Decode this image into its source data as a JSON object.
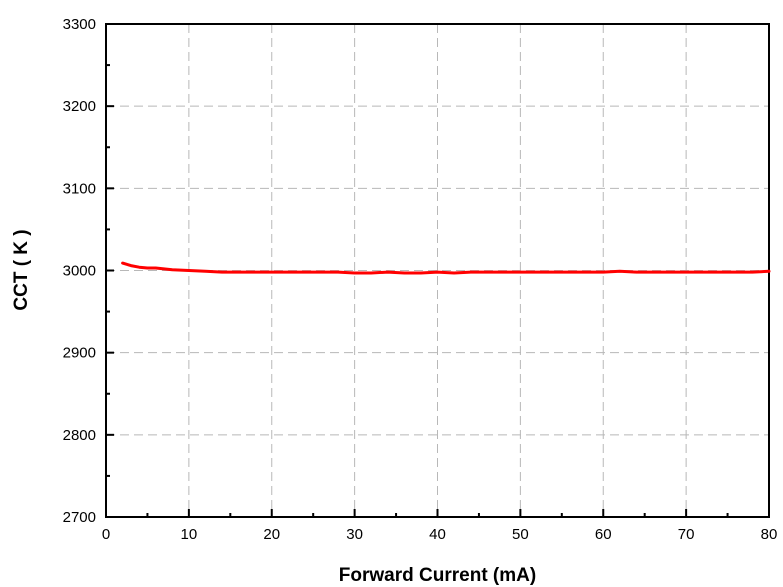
{
  "chart_data": {
    "type": "line",
    "title": "",
    "xlabel": "Forward Current (mA)",
    "ylabel": "CCT ( K )",
    "xlim": [
      0,
      80
    ],
    "ylim": [
      2700,
      3300
    ],
    "xticks": [
      0,
      10,
      20,
      30,
      40,
      50,
      60,
      70,
      80
    ],
    "yticks": [
      2700,
      2800,
      2900,
      3000,
      3100,
      3200,
      3300
    ],
    "x_tick_labels": [
      "0",
      "10",
      "20",
      "30",
      "40",
      "50",
      "60",
      "70",
      "80"
    ],
    "y_tick_labels": [
      "2700",
      "2800",
      "2900",
      "3000",
      "3100",
      "3200",
      "3300"
    ],
    "grid": true,
    "legend": "none",
    "series": [
      {
        "color": "#ff0000",
        "x": [
          2,
          3,
          4,
          5,
          6,
          7,
          8,
          10,
          12,
          14,
          16,
          18,
          20,
          22,
          24,
          26,
          28,
          30,
          32,
          34,
          36,
          38,
          40,
          42,
          44,
          46,
          48,
          50,
          52,
          54,
          56,
          58,
          60,
          62,
          64,
          66,
          68,
          70,
          72,
          74,
          76,
          78,
          80
        ],
        "y": [
          3009,
          3006,
          3004,
          3003,
          3003,
          3002,
          3001,
          3000,
          2999,
          2998,
          2998,
          2998,
          2998,
          2998,
          2998,
          2998,
          2998,
          2997,
          2997,
          2998,
          2997,
          2997,
          2998,
          2997,
          2998,
          2998,
          2998,
          2998,
          2998,
          2998,
          2998,
          2998,
          2998,
          2999,
          2998,
          2998,
          2998,
          2998,
          2998,
          2998,
          2998,
          2998,
          2999
        ]
      }
    ]
  }
}
